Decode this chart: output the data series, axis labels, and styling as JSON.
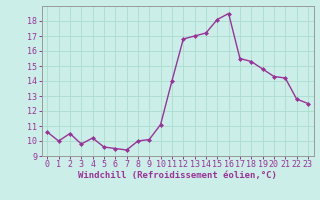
{
  "x": [
    0,
    1,
    2,
    3,
    4,
    5,
    6,
    7,
    8,
    9,
    10,
    11,
    12,
    13,
    14,
    15,
    16,
    17,
    18,
    19,
    20,
    21,
    22,
    23
  ],
  "y": [
    10.6,
    10.0,
    10.5,
    9.8,
    10.2,
    9.6,
    9.5,
    9.4,
    10.0,
    10.1,
    11.1,
    14.0,
    16.8,
    17.0,
    17.2,
    18.1,
    18.5,
    15.5,
    15.3,
    14.8,
    14.3,
    14.2,
    12.8,
    12.5
  ],
  "line_color": "#993399",
  "marker": "D",
  "marker_size": 2.0,
  "bg_color": "#cceee8",
  "grid_color": "#aaddcc",
  "xlabel": "Windchill (Refroidissement éolien,°C)",
  "xlabel_fontsize": 6.5,
  "tick_fontsize": 6.0,
  "ylim": [
    9,
    19
  ],
  "yticks": [
    9,
    10,
    11,
    12,
    13,
    14,
    15,
    16,
    17,
    18
  ],
  "xlim": [
    -0.5,
    23.5
  ],
  "xticks": [
    0,
    1,
    2,
    3,
    4,
    5,
    6,
    7,
    8,
    9,
    10,
    11,
    12,
    13,
    14,
    15,
    16,
    17,
    18,
    19,
    20,
    21,
    22,
    23
  ],
  "line_width": 1.0,
  "spine_color": "#999999"
}
